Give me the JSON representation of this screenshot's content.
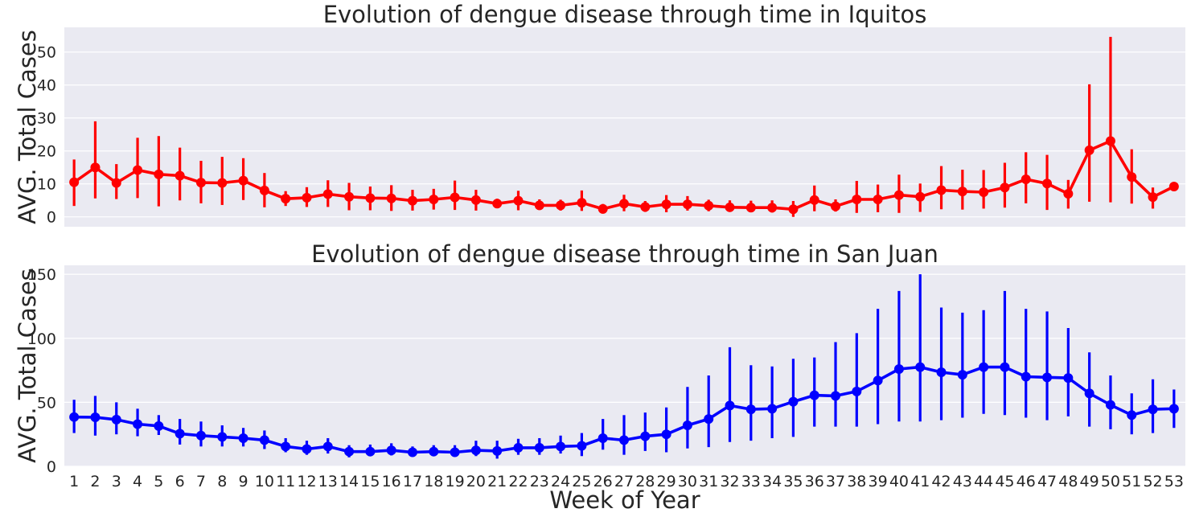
{
  "chart_data": [
    {
      "type": "line",
      "title": "Evolution of dengue disease through time in Iquitos",
      "ylabel": "AVG. Total Cases",
      "xlabel": "",
      "ylim": [
        -3,
        57.5
      ],
      "yticks": [
        0,
        10,
        20,
        30,
        40,
        50
      ],
      "grid": true,
      "color": "#ff0000",
      "x": [
        "1",
        "2",
        "3",
        "4",
        "5",
        "6",
        "7",
        "8",
        "9",
        "10",
        "11",
        "12",
        "13",
        "14",
        "15",
        "16",
        "17",
        "18",
        "19",
        "20",
        "21",
        "22",
        "23",
        "24",
        "25",
        "26",
        "27",
        "28",
        "29",
        "30",
        "31",
        "32",
        "33",
        "34",
        "35",
        "36",
        "37",
        "38",
        "39",
        "40",
        "41",
        "42",
        "43",
        "44",
        "45",
        "46",
        "47",
        "48",
        "49",
        "50",
        "51",
        "52",
        "53"
      ],
      "values": [
        10.5,
        15,
        10.3,
        14.2,
        12.9,
        12.5,
        10.4,
        10.3,
        11,
        8,
        5.5,
        5.8,
        6.9,
        6.1,
        5.7,
        5.6,
        4.9,
        5.3,
        5.9,
        5.1,
        4,
        4.9,
        3.5,
        3.5,
        4.3,
        2.4,
        4,
        3,
        3.8,
        3.8,
        3.4,
        2.9,
        2.8,
        2.8,
        2.3,
        5.1,
        3.2,
        5.3,
        5.3,
        6.6,
        6.1,
        8.1,
        7.7,
        7.5,
        8.9,
        11.4,
        10.1,
        7,
        20.2,
        23,
        12.1,
        6,
        9.2
      ],
      "ci_low": [
        3.3,
        5.6,
        5.4,
        5.7,
        3.2,
        5,
        4.1,
        3.6,
        5.1,
        2.9,
        3.3,
        3,
        3,
        2,
        2,
        1.8,
        1.9,
        2.2,
        2.1,
        1.9,
        2.8,
        2,
        2.1,
        1.9,
        1.8,
        1,
        1.7,
        1.5,
        1.4,
        1.9,
        1.7,
        1.6,
        1.6,
        1.3,
        0,
        1.7,
        1.6,
        1.2,
        1.4,
        1.2,
        1.5,
        2.3,
        2.2,
        2.5,
        2.8,
        4.1,
        2.1,
        2.5,
        4.6,
        4.4,
        4,
        2.5,
        9.2
      ],
      "ci_high": [
        17.4,
        29,
        16,
        24,
        24.5,
        21,
        17,
        18.2,
        17.8,
        13.3,
        7.8,
        9,
        11.1,
        10.3,
        9.2,
        9.6,
        8.2,
        8.5,
        11,
        8.2,
        5.5,
        7.9,
        5.3,
        5.2,
        8,
        3.9,
        6.7,
        4.8,
        6.6,
        6.3,
        5.2,
        5,
        4.9,
        5,
        4.8,
        9.5,
        5.3,
        10.9,
        9.8,
        12.8,
        10.1,
        15.4,
        14.3,
        14.2,
        16.4,
        19.6,
        18.8,
        11.2,
        40.2,
        54.6,
        20.5,
        8.9,
        9.2
      ]
    },
    {
      "type": "line",
      "title": "Evolution of dengue disease through time in San Juan",
      "ylabel": "AVG. Total Cases",
      "xlabel": "Week of Year",
      "ylim": [
        0,
        157
      ],
      "yticks": [
        0,
        50,
        100,
        150
      ],
      "grid": true,
      "color": "#0000ff",
      "x": [
        "1",
        "2",
        "3",
        "4",
        "5",
        "6",
        "7",
        "8",
        "9",
        "10",
        "11",
        "12",
        "13",
        "14",
        "15",
        "16",
        "17",
        "18",
        "19",
        "20",
        "21",
        "22",
        "23",
        "24",
        "25",
        "26",
        "27",
        "28",
        "29",
        "30",
        "31",
        "32",
        "33",
        "34",
        "35",
        "36",
        "37",
        "38",
        "39",
        "40",
        "41",
        "42",
        "43",
        "44",
        "45",
        "46",
        "47",
        "48",
        "49",
        "50",
        "51",
        "52",
        "53"
      ],
      "values": [
        38.5,
        38.3,
        36.5,
        33,
        31.5,
        25.5,
        24,
        23,
        22,
        20.5,
        15.5,
        13.5,
        15.5,
        11.5,
        11.5,
        12.5,
        11,
        11.5,
        11,
        12.5,
        12,
        14.5,
        14.5,
        15.5,
        16,
        22,
        20.5,
        23.5,
        25,
        32,
        37,
        47.5,
        44.5,
        45,
        50.5,
        55.5,
        55,
        58.5,
        67,
        76,
        77.5,
        73.5,
        71.5,
        77.5,
        77.5,
        70,
        69.5,
        69,
        57,
        48,
        40,
        44.5,
        45
      ],
      "ci_low": [
        26,
        24,
        25,
        23.5,
        24.5,
        17,
        15.5,
        15.5,
        15.5,
        13.5,
        11,
        9,
        10,
        7,
        8,
        8.5,
        8,
        8,
        7.5,
        8,
        6,
        9,
        9,
        10,
        8,
        13,
        9,
        12,
        11,
        14,
        15,
        19,
        20,
        22,
        23,
        31,
        31,
        31,
        33,
        35,
        35,
        36,
        38,
        41,
        40,
        38,
        36,
        39,
        31,
        29,
        25,
        26,
        30
      ],
      "ci_high": [
        52,
        55,
        50,
        45,
        40,
        37,
        35,
        32,
        30,
        28,
        22,
        20,
        22,
        16.5,
        17,
        18,
        15.5,
        16.5,
        16.5,
        20,
        20,
        21.5,
        22,
        24,
        26,
        37,
        40,
        42,
        46,
        62,
        71,
        93,
        79,
        78,
        84,
        85,
        97,
        104,
        123,
        137,
        150,
        124,
        120,
        122,
        137,
        123,
        121,
        108,
        89,
        71,
        57,
        68,
        60
      ]
    }
  ]
}
